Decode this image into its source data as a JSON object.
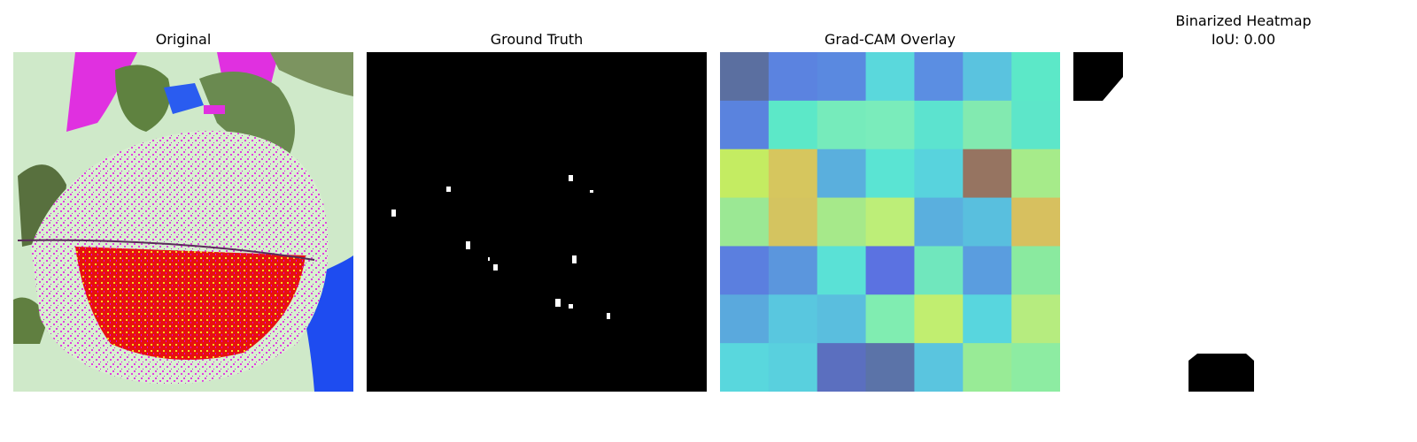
{
  "panels": [
    {
      "title": "Original"
    },
    {
      "title": "Ground Truth"
    },
    {
      "title": "Grad-CAM Overlay"
    },
    {
      "title": "Binarized Heatmap",
      "subtitle": "IoU: 0.00"
    }
  ],
  "heatmap_colors": [
    [
      "#5b6fa0",
      "#5b83e0",
      "#5a89e0",
      "#5ad8dc",
      "#5b8ee2",
      "#5ac3df",
      "#5ce8c8"
    ],
    [
      "#5a83de",
      "#5ce8c8",
      "#76ebbb",
      "#7aecbb",
      "#5ce3cf",
      "#82eab0",
      "#5de6c9"
    ],
    [
      "#c4ec62",
      "#d6c65e",
      "#5aafdd",
      "#5ae4d3",
      "#58d3dd",
      "#967461",
      "#a6eb8a"
    ],
    [
      "#9be894",
      "#d4c460",
      "#a6e98a",
      "#bdee78",
      "#5aafde",
      "#59bfde",
      "#d7c05f"
    ],
    [
      "#5b7fdf",
      "#5b96dd",
      "#5ae1d6",
      "#5b72e1",
      "#70e7bd",
      "#5a9ddf",
      "#8aea9f"
    ],
    [
      "#5aa9dd",
      "#59c7df",
      "#5abede",
      "#80edb1",
      "#c1ee70",
      "#58d6de",
      "#b6ec7f"
    ],
    [
      "#59d7dd",
      "#59d0de",
      "#5b6fbf",
      "#5b73a8",
      "#5ac5df",
      "#98eb96",
      "#8deca2"
    ]
  ]
}
